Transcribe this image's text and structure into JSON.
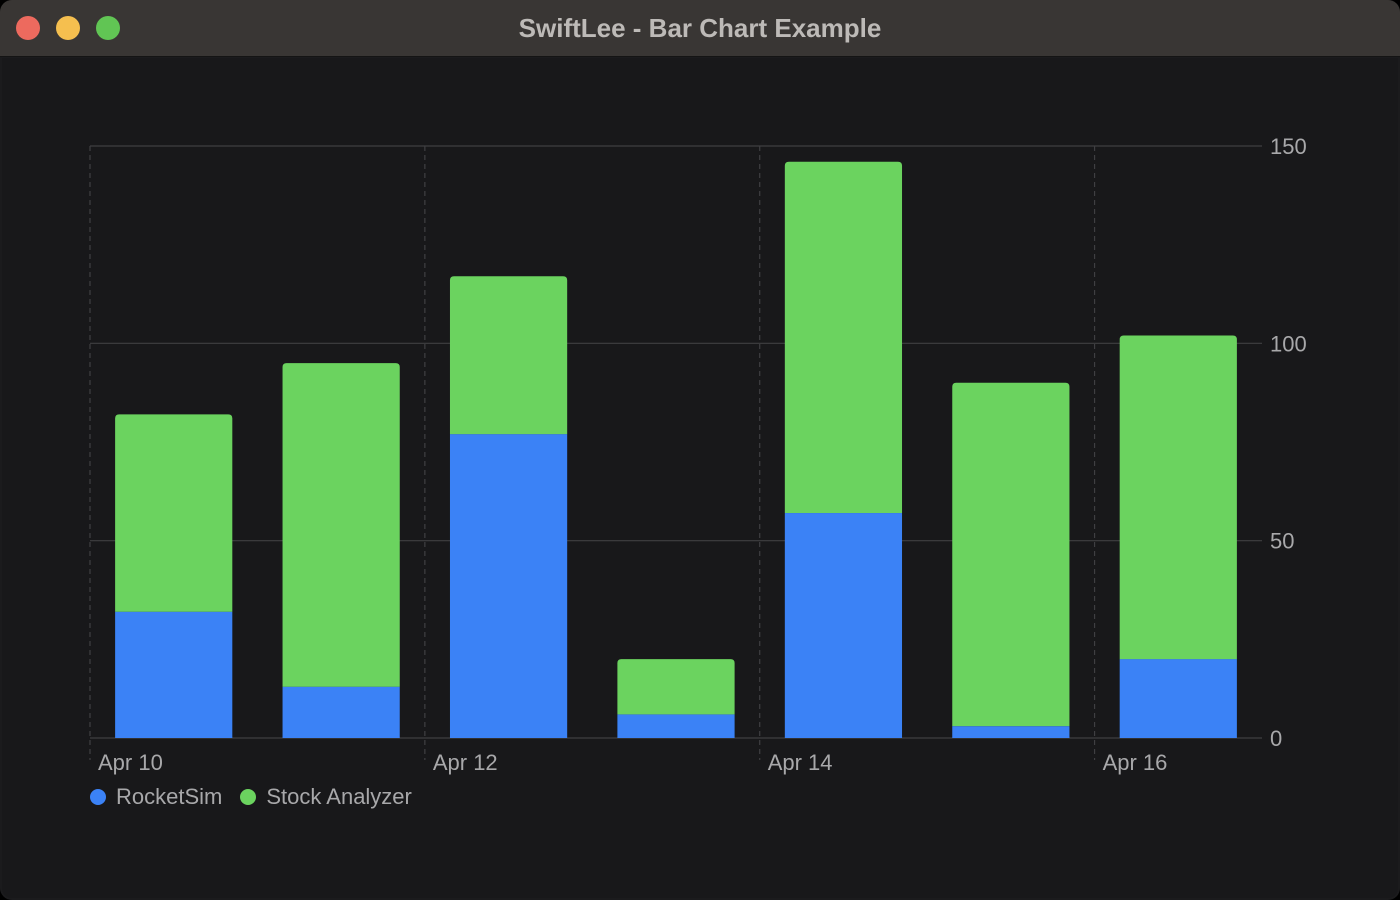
{
  "window": {
    "title": "SwiftLee - Bar Chart Example"
  },
  "colors": {
    "titlebar": "#393634",
    "background": "#18181a",
    "gridline": "#3f3f42",
    "text": "#a8a8aa",
    "rocketsim": "#3b82f6",
    "stock_analyzer": "#6bd35f"
  },
  "chart_data": {
    "type": "bar",
    "stacked": true,
    "x": [
      "2023-04-10",
      "2023-04-11",
      "2023-04-12",
      "2023-04-13",
      "2023-04-14",
      "2023-04-15",
      "2023-04-16"
    ],
    "x_tick_labels": [
      {
        "at": "2023-04-10",
        "label": "Apr 10"
      },
      {
        "at": "2023-04-12",
        "label": "Apr 12"
      },
      {
        "at": "2023-04-14",
        "label": "Apr 14"
      },
      {
        "at": "2023-04-16",
        "label": "Apr 16"
      }
    ],
    "series": [
      {
        "name": "RocketSim",
        "color": "#3b82f6",
        "values": [
          32,
          13,
          77,
          6,
          57,
          3,
          20
        ]
      },
      {
        "name": "Stock Analyzer",
        "color": "#6bd35f",
        "values": [
          50,
          82,
          40,
          14,
          89,
          87,
          82
        ]
      }
    ],
    "ylim": [
      0,
      150
    ],
    "y_ticks": [
      0,
      50,
      100,
      150
    ],
    "y_axis_position": "right",
    "grid": true,
    "legend_position": "bottom-left",
    "title": "",
    "xlabel": "",
    "ylabel": ""
  }
}
